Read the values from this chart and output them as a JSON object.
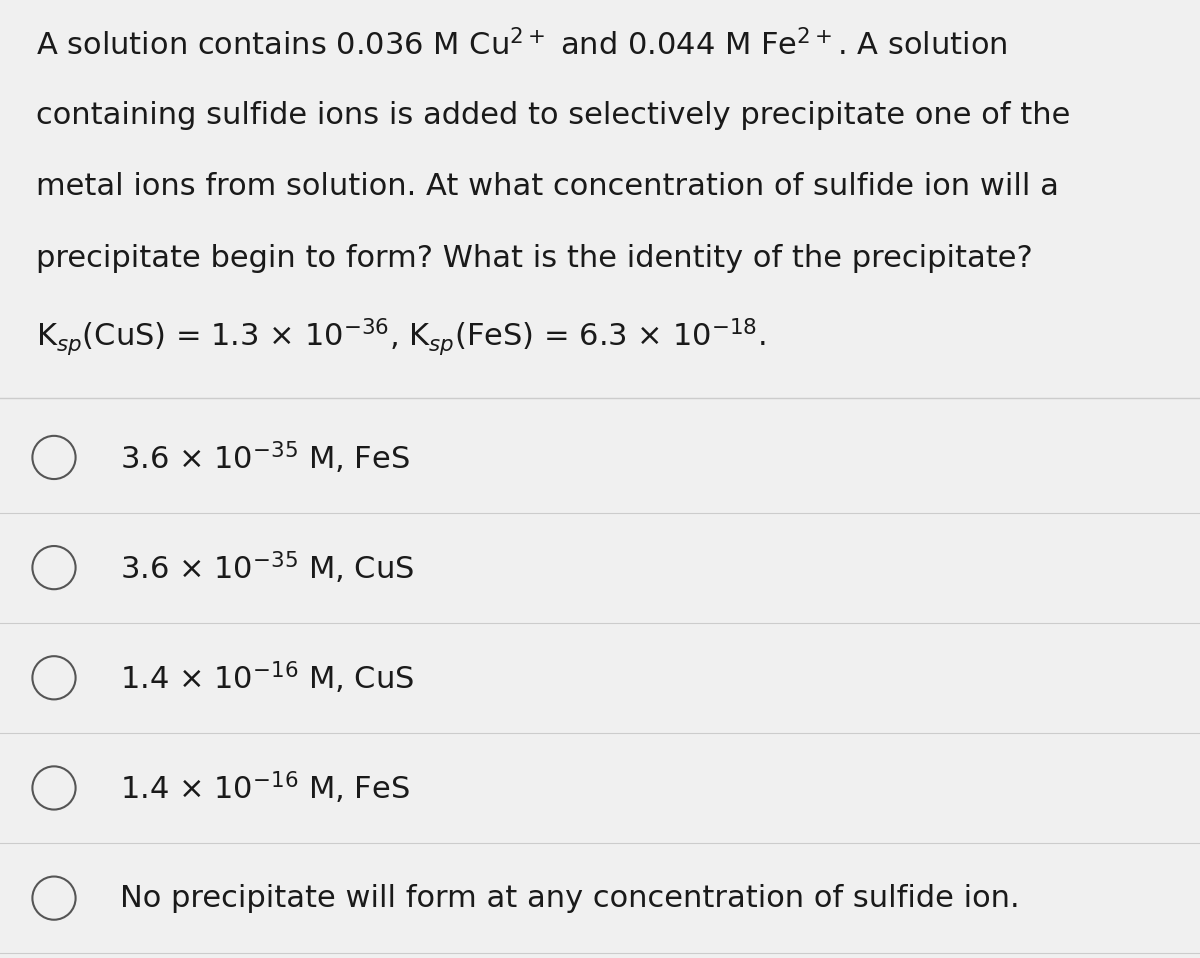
{
  "background_color": "#f0f0f0",
  "text_color": "#1a1a1a",
  "question_lines": [
    "A solution contains 0.036 M Cu$^{2+}$ and 0.044 M Fe$^{2+}$. A solution",
    "containing sulfide ions is added to selectively precipitate one of the",
    "metal ions from solution. At what concentration of sulfide ion will a",
    "precipitate begin to form? What is the identity of the precipitate?",
    "K$_{sp}$(CuS) = 1.3 × 10$^{-36}$, K$_{sp}$(FeS) = 6.3 × 10$^{-18}$."
  ],
  "choices": [
    "3.6 × 10$^{-35}$ M, FeS",
    "3.6 × 10$^{-35}$ M, CuS",
    "1.4 × 10$^{-16}$ M, CuS",
    "1.4 × 10$^{-16}$ M, FeS",
    "No precipitate will form at any concentration of sulfide ion."
  ],
  "divider_color": "#cccccc",
  "circle_color": "#555555",
  "question_fontsize": 22,
  "choice_fontsize": 22,
  "fig_width": 12.0,
  "fig_height": 9.58
}
